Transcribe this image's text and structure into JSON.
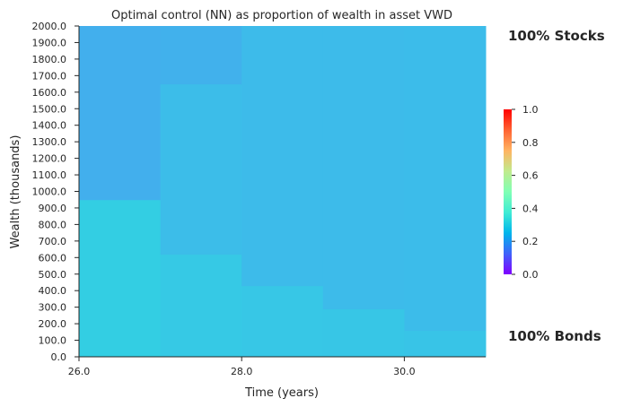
{
  "chart_data": {
    "type": "heatmap",
    "title": "Optimal control (NN) as proportion of wealth in asset VWD",
    "xlabel": "Time (years)",
    "ylabel": "Wealth (thousands)",
    "x_range": [
      26.0,
      31.0
    ],
    "y_range": [
      0,
      2000
    ],
    "x_ticks": [
      "26.0",
      "28.0",
      "30.0"
    ],
    "y_ticks": [
      "0.0",
      "100.0",
      "200.0",
      "300.0",
      "400.0",
      "500.0",
      "600.0",
      "700.0",
      "800.0",
      "900.0",
      "1000.0",
      "1100.0",
      "1200.0",
      "1300.0",
      "1400.0",
      "1500.0",
      "1600.0",
      "1700.0",
      "1800.0",
      "1900.0",
      "2000.0"
    ],
    "colorbar": {
      "min": 0.0,
      "max": 1.0,
      "ticks": [
        "0.0",
        "0.2",
        "0.4",
        "0.6",
        "0.8",
        "1.0"
      ],
      "colormap": "rainbow"
    },
    "annotations": {
      "top": "100% Stocks",
      "bottom": "100% Bonds"
    },
    "cells": [
      {
        "t0": 26,
        "t1": 27,
        "w0": 0,
        "w1": 950,
        "value": 0.3
      },
      {
        "t0": 26,
        "t1": 27,
        "w0": 950,
        "w1": 2000,
        "value": 0.24
      },
      {
        "t0": 27,
        "t1": 28,
        "w0": 0,
        "w1": 620,
        "value": 0.29
      },
      {
        "t0": 27,
        "t1": 28,
        "w0": 620,
        "w1": 1650,
        "value": 0.265
      },
      {
        "t0": 27,
        "t1": 28,
        "w0": 1650,
        "w1": 2000,
        "value": 0.245
      },
      {
        "t0": 28,
        "t1": 29,
        "w0": 0,
        "w1": 430,
        "value": 0.285
      },
      {
        "t0": 28,
        "t1": 29,
        "w0": 430,
        "w1": 2000,
        "value": 0.262
      },
      {
        "t0": 29,
        "t1": 30,
        "w0": 0,
        "w1": 290,
        "value": 0.283
      },
      {
        "t0": 29,
        "t1": 30,
        "w0": 290,
        "w1": 2000,
        "value": 0.262
      },
      {
        "t0": 30,
        "t1": 31,
        "w0": 0,
        "w1": 160,
        "value": 0.28
      },
      {
        "t0": 30,
        "t1": 31,
        "w0": 160,
        "w1": 2000,
        "value": 0.263
      }
    ]
  }
}
